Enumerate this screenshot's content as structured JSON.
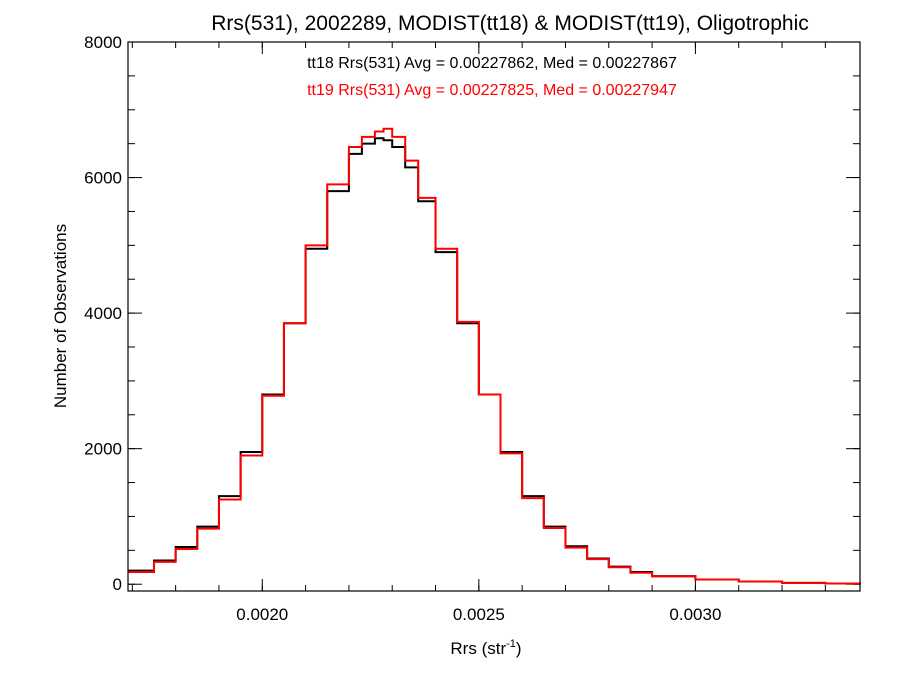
{
  "chart_data": {
    "type": "line",
    "title": "Rrs(531), 2002289, MODIST(tt18) & MODIST(tt19), Oligotrophic",
    "xlabel_base": "Rrs (str",
    "xlabel_sup": "-1",
    "xlabel_end": ")",
    "ylabel": "Number of Observations",
    "xlim": [
      0.00169,
      0.00338
    ],
    "ylim": [
      -100,
      8000
    ],
    "grid": false,
    "x_ticks": [
      {
        "value": 0.002,
        "label": "0.0020"
      },
      {
        "value": 0.0025,
        "label": "0.0025"
      },
      {
        "value": 0.003,
        "label": "0.0030"
      }
    ],
    "x_minor_step": 0.0001,
    "y_ticks": [
      {
        "value": 0,
        "label": "0"
      },
      {
        "value": 2000,
        "label": "2000"
      },
      {
        "value": 4000,
        "label": "4000"
      },
      {
        "value": 6000,
        "label": "6000"
      },
      {
        "value": 8000,
        "label": "8000"
      }
    ],
    "y_minor_step": 500,
    "annotations": [
      {
        "text": "tt18 Rrs(531) Avg = 0.00227862, Med = 0.00227867",
        "color": "#000000"
      },
      {
        "text": "tt19 Rrs(531) Avg = 0.00227825, Med = 0.00227947",
        "color": "#ff0000"
      }
    ],
    "series": [
      {
        "color": "#000000",
        "x": [
          0.00169,
          0.00175,
          0.0018,
          0.00185,
          0.0019,
          0.00195,
          0.002,
          0.00205,
          0.0021,
          0.00215,
          0.0022,
          0.00223,
          0.00226,
          0.00228,
          0.0023,
          0.00233,
          0.00236,
          0.0024,
          0.00245,
          0.0025,
          0.00255,
          0.0026,
          0.00265,
          0.0027,
          0.00275,
          0.0028,
          0.00285,
          0.0029,
          0.003,
          0.0031,
          0.0032,
          0.0033,
          0.00338
        ],
        "values": [
          200,
          350,
          550,
          850,
          1300,
          1950,
          2800,
          3850,
          4950,
          5800,
          6350,
          6500,
          6580,
          6550,
          6450,
          6150,
          5650,
          4900,
          3850,
          2800,
          1950,
          1300,
          850,
          560,
          380,
          260,
          180,
          120,
          70,
          40,
          20,
          10,
          0
        ]
      },
      {
        "color": "#ff0000",
        "x": [
          0.00169,
          0.00175,
          0.0018,
          0.00185,
          0.0019,
          0.00195,
          0.002,
          0.00205,
          0.0021,
          0.00215,
          0.0022,
          0.00223,
          0.00226,
          0.00228,
          0.0023,
          0.00233,
          0.00236,
          0.0024,
          0.00245,
          0.0025,
          0.00255,
          0.0026,
          0.00265,
          0.0027,
          0.00275,
          0.0028,
          0.00285,
          0.0029,
          0.003,
          0.0031,
          0.0032,
          0.0033,
          0.00338
        ],
        "values": [
          180,
          330,
          520,
          820,
          1250,
          1900,
          2780,
          3850,
          5000,
          5900,
          6450,
          6600,
          6680,
          6720,
          6600,
          6250,
          5700,
          4950,
          3870,
          2800,
          1930,
          1270,
          830,
          540,
          370,
          250,
          170,
          115,
          70,
          40,
          20,
          10,
          0
        ]
      }
    ]
  }
}
